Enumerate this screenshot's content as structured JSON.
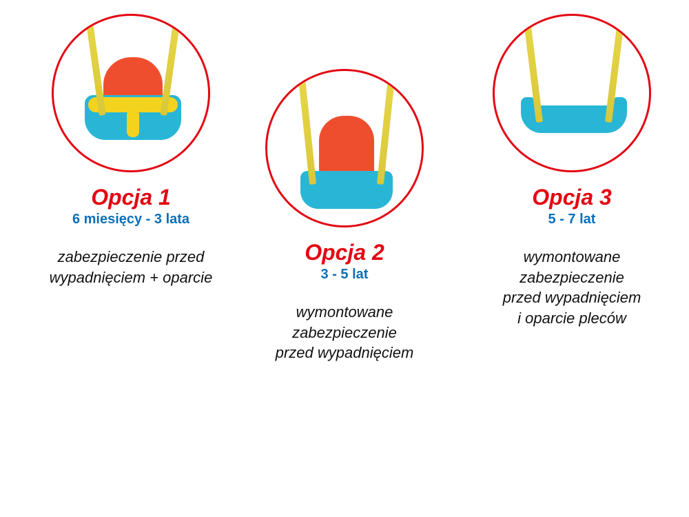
{
  "colors": {
    "title": "#e30613",
    "age": "#0a6fb8",
    "circle_border": "#e30613",
    "swing_seat": "#29b6d6",
    "swing_back": "#ef4e2e",
    "swing_bar": "#f4d31f",
    "rope": "#e8d84a",
    "text": "#111111"
  },
  "options": [
    {
      "title": "Opcja 1",
      "age": "6 miesięcy - 3 lata",
      "desc": "zabezpieczenie przed\nwypadnięciem + oparcie"
    },
    {
      "title": "Opcja 2",
      "age": "3 - 5 lat",
      "desc": "wymontowane\nzabezpieczenie\nprzed wypadnięciem"
    },
    {
      "title": "Opcja 3",
      "age": "5 - 7 lat",
      "desc": "wymontowane\nzabezpieczenie\nprzed wypadnięciem\ni oparcie pleców"
    }
  ]
}
